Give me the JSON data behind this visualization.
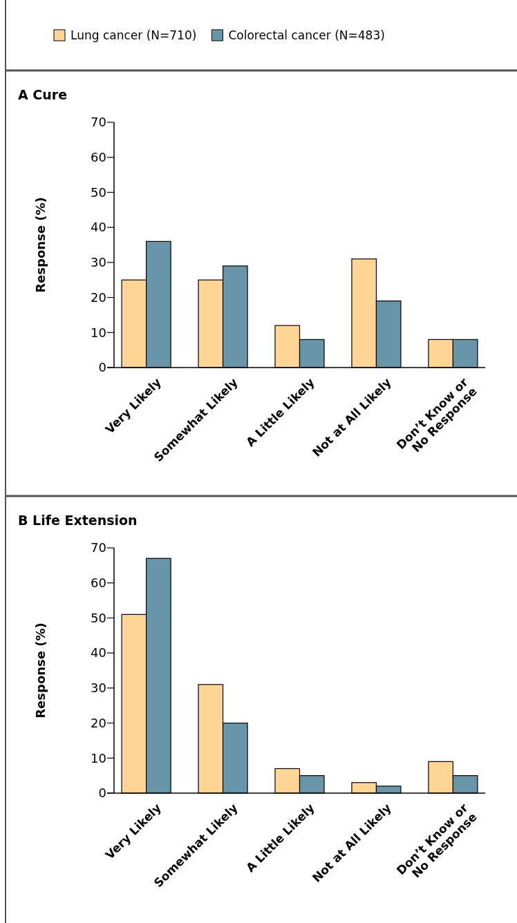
{
  "chart_data": [
    {
      "type": "bar",
      "title": "A Cure",
      "ylabel": "Response (%)",
      "categories": [
        "Very Likely",
        "Somewhat Likely",
        "A Little Likely",
        "Not at All Likely",
        "Don’t Know or No Response"
      ],
      "series": [
        {
          "name": "Lung cancer (N=710)",
          "color": "#fed594",
          "values": [
            25,
            25,
            12,
            31,
            8
          ]
        },
        {
          "name": "Colorectal cancer (N=483)",
          "color": "#6896a8",
          "values": [
            36,
            29,
            8,
            19,
            8
          ]
        }
      ],
      "ylim": [
        0,
        70
      ],
      "yticks": [
        0,
        10,
        20,
        30,
        40,
        50,
        60,
        70
      ],
      "grid": false,
      "legend": "top"
    },
    {
      "type": "bar",
      "title": "B Life Extension",
      "ylabel": "Response (%)",
      "categories": [
        "Very Likely",
        "Somewhat Likely",
        "A Little Likely",
        "Not at All Likely",
        "Don’t Know or No Response"
      ],
      "series": [
        {
          "color": "#fed594",
          "values": [
            51,
            31,
            7,
            3,
            9
          ]
        },
        {
          "color": "#6896a8",
          "values": [
            67,
            20,
            5,
            2,
            5
          ]
        }
      ],
      "ylim": [
        0,
        70
      ],
      "yticks": [
        0,
        10,
        20,
        30,
        40,
        50,
        60,
        70
      ],
      "grid": false
    }
  ]
}
